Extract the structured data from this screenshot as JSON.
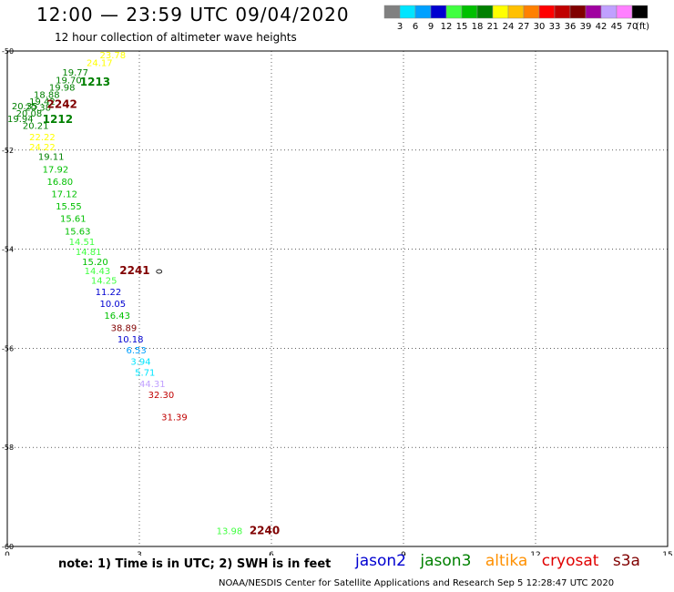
{
  "header": {
    "title": "12:00 — 23:59 UTC 09/04/2020",
    "subtitle": "12 hour collection of altimeter wave heights"
  },
  "legend": {
    "unit": "(ft)",
    "bins": [
      {
        "label": "3",
        "color": "#808080"
      },
      {
        "label": "6",
        "color": "#00e5ff"
      },
      {
        "label": "9",
        "color": "#00a0ff"
      },
      {
        "label": "12",
        "color": "#0000d0"
      },
      {
        "label": "15",
        "color": "#40ff40"
      },
      {
        "label": "18",
        "color": "#00c000"
      },
      {
        "label": "21",
        "color": "#008000"
      },
      {
        "label": "24",
        "color": "#ffff00"
      },
      {
        "label": "27",
        "color": "#ffc000"
      },
      {
        "label": "30",
        "color": "#ff8000"
      },
      {
        "label": "33",
        "color": "#ff0000"
      },
      {
        "label": "36",
        "color": "#c00000"
      },
      {
        "label": "39",
        "color": "#800000"
      },
      {
        "label": "42",
        "color": "#a000a0"
      },
      {
        "label": "45",
        "color": "#c0a0ff"
      },
      {
        "label": "70",
        "color": "#ff80ff"
      },
      {
        "label": "",
        "color": "#000000"
      }
    ]
  },
  "chart_data": {
    "type": "scatter",
    "xlim": [
      0,
      15
    ],
    "ylim": [
      -60,
      -50
    ],
    "x_ticks": [
      0,
      3,
      6,
      9,
      12,
      15
    ],
    "y_ticks": [
      -50,
      -52,
      -54,
      -56,
      -58,
      -60
    ],
    "grid": true,
    "points": [
      {
        "x": 2.1,
        "y": -50.15,
        "label": "23.78",
        "color": "#ffff00"
      },
      {
        "x": 1.8,
        "y": -50.3,
        "label": "24.17",
        "color": "#ffff00"
      },
      {
        "x": 1.25,
        "y": -50.5,
        "label": "19.77",
        "color": "#008000"
      },
      {
        "x": 1.1,
        "y": -50.65,
        "label": "19.70",
        "color": "#008000"
      },
      {
        "x": 0.95,
        "y": -50.8,
        "label": "19.98",
        "color": "#008000"
      },
      {
        "x": 0.6,
        "y": -50.95,
        "label": "18.88",
        "color": "#008000"
      },
      {
        "x": 0.5,
        "y": -51.08,
        "label": "19.42",
        "color": "#008000"
      },
      {
        "x": 0.1,
        "y": -51.18,
        "label": "20.35",
        "color": "#008000"
      },
      {
        "x": 0.4,
        "y": -51.2,
        "label": "20.38",
        "color": "#008000"
      },
      {
        "x": 0.2,
        "y": -51.32,
        "label": "20.08",
        "color": "#008000"
      },
      {
        "x": 0.0,
        "y": -51.43,
        "label": "19.94",
        "color": "#008000"
      },
      {
        "x": 0.35,
        "y": -51.57,
        "label": "20.21",
        "color": "#008000"
      },
      {
        "x": 0.5,
        "y": -51.8,
        "label": "22.22",
        "color": "#ffff00"
      },
      {
        "x": 0.5,
        "y": -52.0,
        "label": "24.22",
        "color": "#ffff00"
      },
      {
        "x": 0.7,
        "y": -52.2,
        "label": "19.11",
        "color": "#008000"
      },
      {
        "x": 0.8,
        "y": -52.45,
        "label": "17.92",
        "color": "#00c000"
      },
      {
        "x": 0.9,
        "y": -52.7,
        "label": "16.80",
        "color": "#00c000"
      },
      {
        "x": 1.0,
        "y": -52.95,
        "label": "17.12",
        "color": "#00c000"
      },
      {
        "x": 1.1,
        "y": -53.2,
        "label": "15.55",
        "color": "#00c000"
      },
      {
        "x": 1.2,
        "y": -53.45,
        "label": "15.61",
        "color": "#00c000"
      },
      {
        "x": 1.3,
        "y": -53.7,
        "label": "15.63",
        "color": "#00c000"
      },
      {
        "x": 1.4,
        "y": -53.92,
        "label": "14.51",
        "color": "#40ff40"
      },
      {
        "x": 1.55,
        "y": -54.12,
        "label": "14.81",
        "color": "#40ff40"
      },
      {
        "x": 1.7,
        "y": -54.32,
        "label": "15.20",
        "color": "#00c000"
      },
      {
        "x": 1.75,
        "y": -54.5,
        "label": "14.43",
        "color": "#40ff40"
      },
      {
        "x": 1.9,
        "y": -54.7,
        "label": "14.25",
        "color": "#40ff40"
      },
      {
        "x": 2.0,
        "y": -54.93,
        "label": "11.22",
        "color": "#0000d0"
      },
      {
        "x": 2.1,
        "y": -55.17,
        "label": "10.05",
        "color": "#0000d0"
      },
      {
        "x": 2.2,
        "y": -55.4,
        "label": "16.43",
        "color": "#00c000"
      },
      {
        "x": 2.35,
        "y": -55.65,
        "label": "38.89",
        "color": "#800000"
      },
      {
        "x": 2.5,
        "y": -55.88,
        "label": "10.18",
        "color": "#0000d0"
      },
      {
        "x": 2.7,
        "y": -56.1,
        "label": "6.53",
        "color": "#00a0ff"
      },
      {
        "x": 2.8,
        "y": -56.33,
        "label": "3.94",
        "color": "#00e5ff"
      },
      {
        "x": 2.9,
        "y": -56.55,
        "label": "5.71",
        "color": "#00e5ff"
      },
      {
        "x": 3.0,
        "y": -56.78,
        "label": "44.31",
        "color": "#c0a0ff"
      },
      {
        "x": 3.2,
        "y": -57.0,
        "label": "32.30",
        "color": "#c00000"
      },
      {
        "x": 3.5,
        "y": -57.45,
        "label": "31.39",
        "color": "#c00000"
      },
      {
        "x": 4.75,
        "y": -59.75,
        "label": "13.98",
        "color": "#40ff40"
      }
    ],
    "pass_labels": [
      {
        "x": 1.65,
        "y": -50.7,
        "label": "1213",
        "color": "#008000"
      },
      {
        "x": 0.9,
        "y": -51.15,
        "label": "2242",
        "color": "#800000"
      },
      {
        "x": 0.8,
        "y": -51.45,
        "label": "1212",
        "color": "#008000"
      },
      {
        "x": 2.55,
        "y": -54.5,
        "label": "2241",
        "color": "#800000"
      },
      {
        "x": 5.5,
        "y": -59.75,
        "label": "2240",
        "color": "#800000"
      }
    ]
  },
  "note": "note:  1) Time is in UTC;  2) SWH is in feet",
  "missions": [
    {
      "name": "jason2",
      "color": "#0000d0"
    },
    {
      "name": "jason3",
      "color": "#008000"
    },
    {
      "name": "altika",
      "color": "#ff9000"
    },
    {
      "name": "cryosat",
      "color": "#e00000"
    },
    {
      "name": "s3a",
      "color": "#800000"
    }
  ],
  "footer": "NOAA/NESDIS Center for Satellite Applications and Research    Sep  5 12:28:47 UTC 2020"
}
